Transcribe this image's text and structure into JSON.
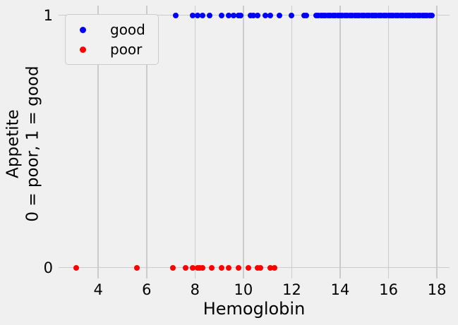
{
  "figure": {
    "background": "#f0f0f0",
    "grid_color": "#cbcbcb",
    "text_color": "#000000"
  },
  "chart_data": {
    "type": "scatter",
    "title": "",
    "xlabel": "Hemoglobin",
    "ylabel_lines": [
      "Appetite",
      "0 = poor, 1 = good"
    ],
    "xlim": [
      2.36,
      18.52
    ],
    "ylim": [
      -0.043,
      1.038
    ],
    "x_ticks": [
      4,
      6,
      8,
      10,
      12,
      14,
      16,
      18
    ],
    "y_ticks": [
      1,
      0
    ],
    "grid": true,
    "legend": {
      "position": "upper left",
      "entries": [
        {
          "label": "good",
          "color": "#0000ff"
        },
        {
          "label": "poor",
          "color": "#ff0000"
        }
      ]
    },
    "series": [
      {
        "name": "good",
        "color": "#0000ff",
        "y": 1,
        "x": [
          7.2,
          7.9,
          8.1,
          8.3,
          8.6,
          9.1,
          9.4,
          9.6,
          9.8,
          9.9,
          10.3,
          10.4,
          10.6,
          10.9,
          11.1,
          11.5,
          12.0,
          12.5,
          12.6,
          13.0,
          13.1,
          13.2,
          13.3,
          13.4,
          13.5,
          13.6,
          13.7,
          13.8,
          13.9,
          14.0,
          14.1,
          14.2,
          14.3,
          14.4,
          14.5,
          14.6,
          14.7,
          14.8,
          14.9,
          15.0,
          15.1,
          15.2,
          15.3,
          15.4,
          15.5,
          15.6,
          15.7,
          15.8,
          15.9,
          16.0,
          16.1,
          16.2,
          16.3,
          16.4,
          16.5,
          16.6,
          16.7,
          16.8,
          16.9,
          17.0,
          17.1,
          17.2,
          17.3,
          17.4,
          17.5,
          17.6,
          17.7,
          17.8
        ]
      },
      {
        "name": "poor",
        "color": "#ff0000",
        "y": 0,
        "x": [
          3.1,
          5.6,
          7.1,
          7.6,
          7.9,
          8.1,
          8.2,
          8.3,
          8.7,
          9.1,
          9.4,
          9.8,
          10.2,
          10.6,
          10.7,
          11.1,
          11.3
        ]
      }
    ]
  }
}
